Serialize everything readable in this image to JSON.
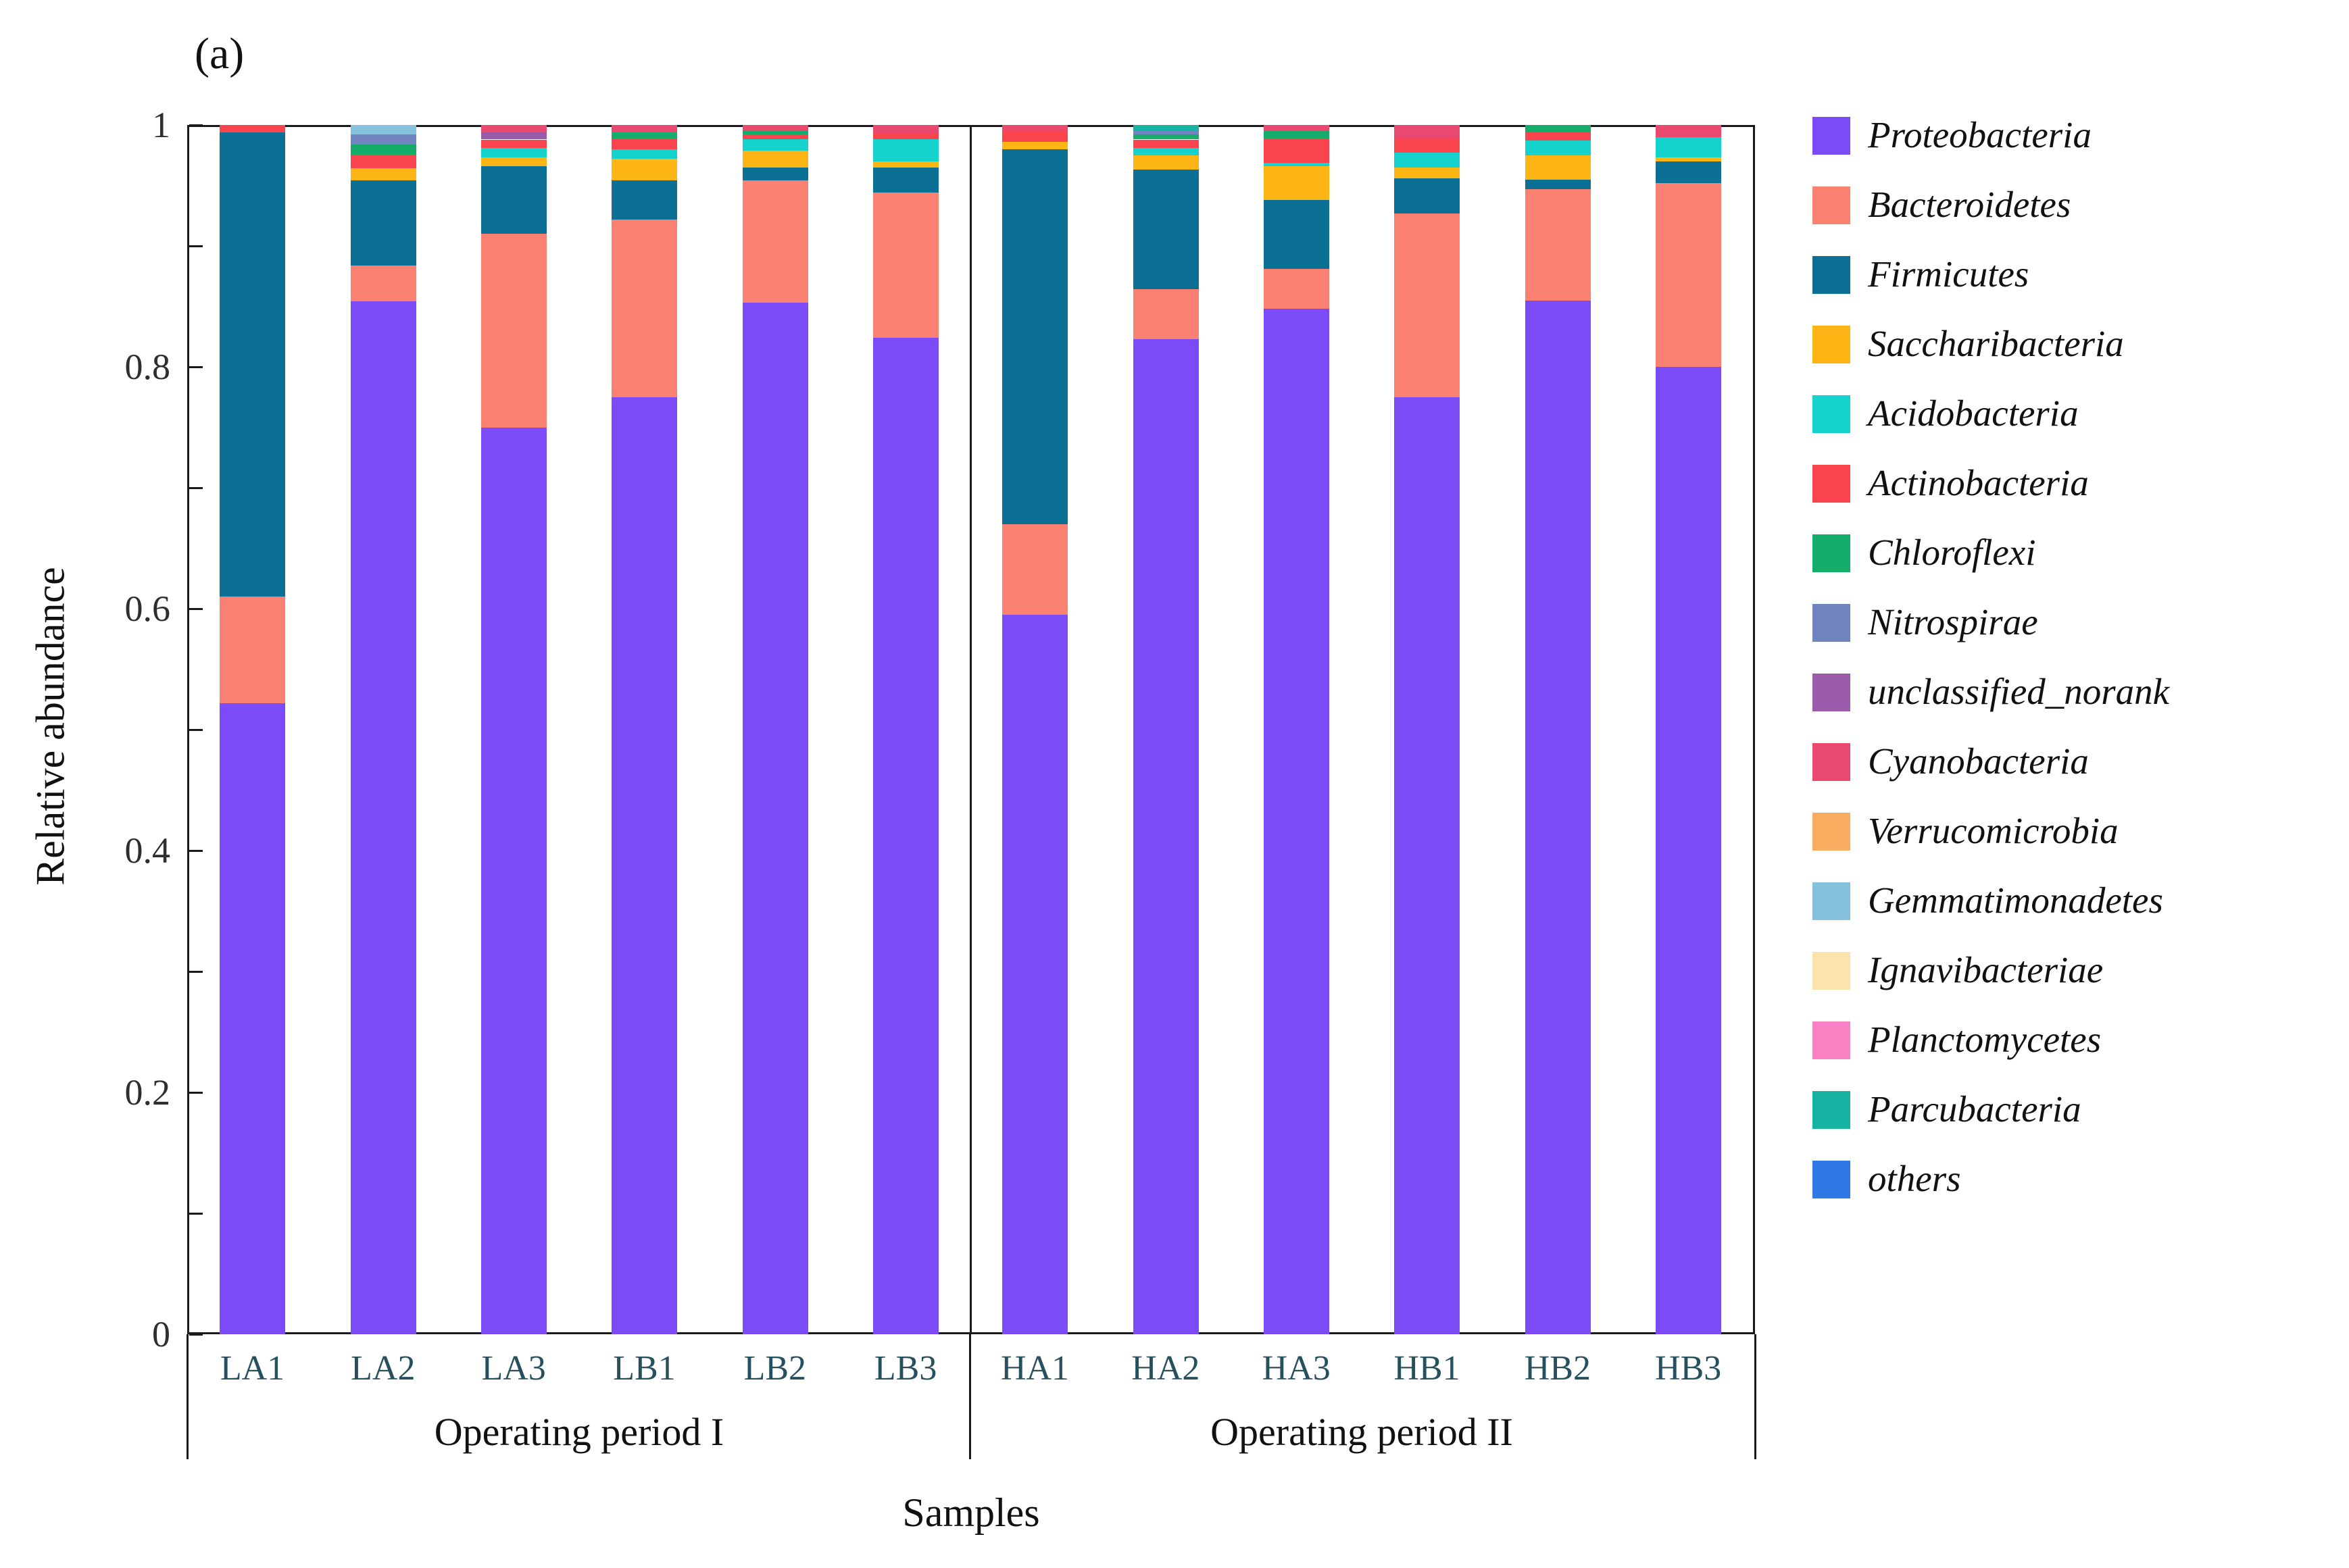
{
  "panel_label": "(a)",
  "axes": {
    "y_title": "Relative abundance",
    "x_title": "Samples",
    "y_tick_labels": [
      "1",
      "0.8",
      "0.6",
      "0.4",
      "0.2",
      "0"
    ],
    "y_tick_values": [
      1,
      0.8,
      0.6,
      0.4,
      0.2,
      0
    ],
    "y_minor_tick_values": [
      0.9,
      0.7,
      0.5,
      0.3,
      0.1
    ]
  },
  "groups": [
    {
      "label": "Operating period I",
      "samples": [
        "LA1",
        "LA2",
        "LA3",
        "LB1",
        "LB2",
        "LB3"
      ]
    },
    {
      "label": "Operating period II",
      "samples": [
        "HA1",
        "HA2",
        "HA3",
        "HB1",
        "HB2",
        "HB3"
      ]
    }
  ],
  "chart_data": {
    "type": "bar",
    "stacked": true,
    "title": "",
    "xlabel": "Samples",
    "ylabel": "Relative abundance",
    "ylim": [
      0,
      1
    ],
    "grid": false,
    "legend_position": "right",
    "categories": [
      "LA1",
      "LA2",
      "LA3",
      "LB1",
      "LB2",
      "LB3",
      "HA1",
      "HA2",
      "HA3",
      "HB1",
      "HB2",
      "HB3"
    ],
    "series": [
      {
        "name": "Proteobacteria",
        "color": "#7a4bf7",
        "values": [
          0.522,
          0.854,
          0.75,
          0.775,
          0.853,
          0.824,
          0.595,
          0.823,
          0.848,
          0.775,
          0.855,
          0.8
        ]
      },
      {
        "name": "Bacteroidetes",
        "color": "#fa8072",
        "values": [
          0.088,
          0.03,
          0.16,
          0.147,
          0.101,
          0.12,
          0.075,
          0.041,
          0.033,
          0.152,
          0.092,
          0.152
        ]
      },
      {
        "name": "Firmicutes",
        "color": "#0b7093",
        "values": [
          0.384,
          0.07,
          0.056,
          0.032,
          0.011,
          0.021,
          0.31,
          0.099,
          0.057,
          0.029,
          0.008,
          0.018
        ]
      },
      {
        "name": "Saccharibacteria",
        "color": "#fdb515",
        "values": [
          0.0,
          0.01,
          0.007,
          0.018,
          0.014,
          0.005,
          0.006,
          0.012,
          0.028,
          0.009,
          0.02,
          0.003
        ]
      },
      {
        "name": "Acidobacteria",
        "color": "#16d2cc",
        "values": [
          0.0,
          0.0,
          0.008,
          0.008,
          0.009,
          0.018,
          0.0,
          0.006,
          0.003,
          0.012,
          0.012,
          0.017
        ]
      },
      {
        "name": "Actinobacteria",
        "color": "#f9444e",
        "values": [
          0.006,
          0.011,
          0.007,
          0.009,
          0.004,
          0.005,
          0.009,
          0.007,
          0.02,
          0.012,
          0.007,
          0.0
        ]
      },
      {
        "name": "Chloroflexi",
        "color": "#16ac6a",
        "values": [
          0.0,
          0.009,
          0.0,
          0.005,
          0.003,
          0.0,
          0.0,
          0.004,
          0.006,
          0.0,
          0.006,
          0.0
        ]
      },
      {
        "name": "Nitrospirae",
        "color": "#7184c2",
        "values": [
          0.0,
          0.008,
          0.0,
          0.0,
          0.0,
          0.0,
          0.0,
          0.003,
          0.0,
          0.0,
          0.0,
          0.0
        ]
      },
      {
        "name": "unclassified_norank",
        "color": "#9a5bab",
        "values": [
          0.0,
          0.0,
          0.006,
          0.0,
          0.0,
          0.0,
          0.0,
          0.0,
          0.0,
          0.0,
          0.0,
          0.0
        ]
      },
      {
        "name": "Cyanobacteria",
        "color": "#e9486f",
        "values": [
          0.0,
          0.0,
          0.006,
          0.006,
          0.005,
          0.007,
          0.005,
          0.0,
          0.005,
          0.011,
          0.0,
          0.01
        ]
      },
      {
        "name": "Verrucomicrobia",
        "color": "#f9ad61",
        "values": [
          0,
          0,
          0,
          0,
          0,
          0,
          0,
          0,
          0,
          0,
          0,
          0
        ]
      },
      {
        "name": "Gemmatimonadetes",
        "color": "#86c1dc",
        "values": [
          0.0,
          0.008,
          0.0,
          0.0,
          0.0,
          0.0,
          0.0,
          0.0,
          0.0,
          0.0,
          0.0,
          0.0
        ]
      },
      {
        "name": "Ignavibacteriae",
        "color": "#fae3ad",
        "values": [
          0,
          0,
          0,
          0,
          0,
          0,
          0,
          0,
          0,
          0,
          0,
          0
        ]
      },
      {
        "name": "Planctomycetes",
        "color": "#fa80c4",
        "values": [
          0,
          0,
          0,
          0,
          0,
          0,
          0,
          0,
          0,
          0,
          0,
          0
        ]
      },
      {
        "name": "Parcubacteria",
        "color": "#16b2a2",
        "values": [
          0.0,
          0.0,
          0.0,
          0.0,
          0.0,
          0.0,
          0.0,
          0.005,
          0.0,
          0.0,
          0.0,
          0.0
        ]
      },
      {
        "name": "others",
        "color": "#2e79e6",
        "values": [
          0,
          0,
          0,
          0,
          0,
          0,
          0,
          0,
          0,
          0,
          0,
          0
        ]
      }
    ]
  },
  "colors": {
    "frame": "#1a1a1a",
    "x_tick_label": "#26505e",
    "text": "#111111"
  }
}
